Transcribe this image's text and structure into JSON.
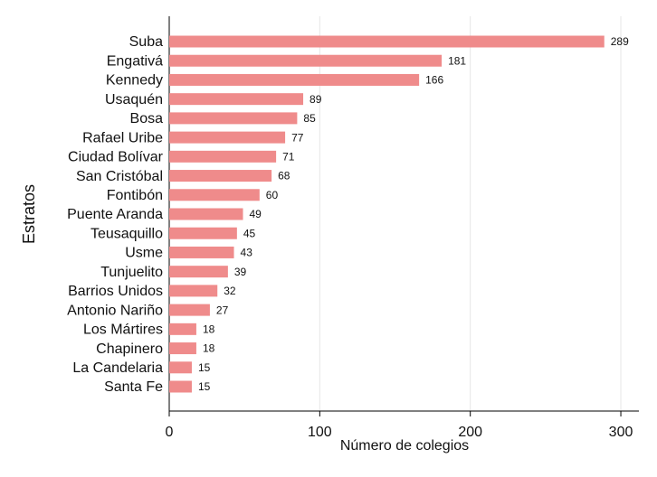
{
  "chart_data": {
    "type": "bar",
    "orientation": "horizontal",
    "y_label": "Estratos",
    "x_label": "Número de colegios",
    "categories": [
      "Suba",
      "Engativá",
      "Kennedy",
      "Usaquén",
      "Bosa",
      "Rafael Uribe",
      "Ciudad Bolívar",
      "San Cristóbal",
      "Fontibón",
      "Puente Aranda",
      "Teusaquillo",
      "Usme",
      "Tunjuelito",
      "Barrios Unidos",
      "Antonio Nariño",
      "Los Mártires",
      "Chapinero",
      "La Candelaria",
      "Santa Fe"
    ],
    "values": [
      289,
      181,
      166,
      89,
      85,
      77,
      71,
      68,
      60,
      49,
      45,
      43,
      39,
      32,
      27,
      18,
      18,
      15,
      15
    ],
    "color": "#ef8b8b",
    "xlim": [
      0,
      312
    ],
    "xticks": [
      0,
      100,
      200,
      300
    ],
    "grid": true
  }
}
